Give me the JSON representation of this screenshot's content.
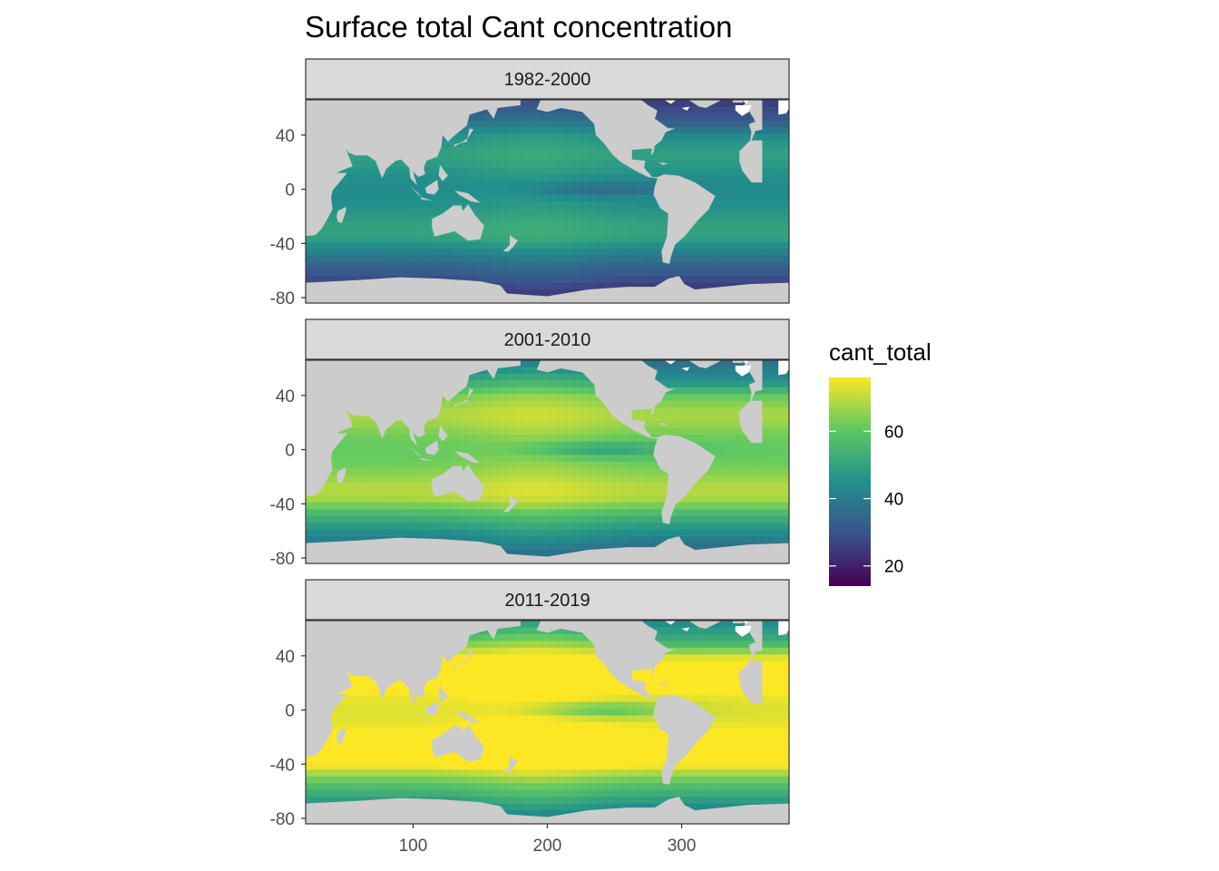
{
  "chart_data": {
    "type": "heatmap",
    "title": "Surface total Cant concentration",
    "xlabel": "",
    "ylabel": "",
    "facets": [
      "1982-2000",
      "2001-2010",
      "2011-2019"
    ],
    "x_ticks": [
      100,
      200,
      300
    ],
    "y_ticks": [
      40,
      0,
      -40,
      -80
    ],
    "xlim": [
      20,
      380
    ],
    "ylim": [
      -84,
      66
    ],
    "legend": {
      "title": "cant_total",
      "ticks": [
        60,
        40,
        20
      ],
      "range": [
        14,
        76
      ],
      "placement": "right",
      "palette": [
        "#440154",
        "#3b528b",
        "#21908c",
        "#5dc863",
        "#fde725"
      ]
    },
    "colors": {
      "land": "#cccccc",
      "strip": "#d9d9d9",
      "panel_border": "#333333"
    },
    "grid": false,
    "summary_ranges": {
      "1982-2000": [
        14,
        50
      ],
      "2001-2010": [
        22,
        68
      ],
      "2011-2019": [
        25,
        76
      ]
    }
  }
}
